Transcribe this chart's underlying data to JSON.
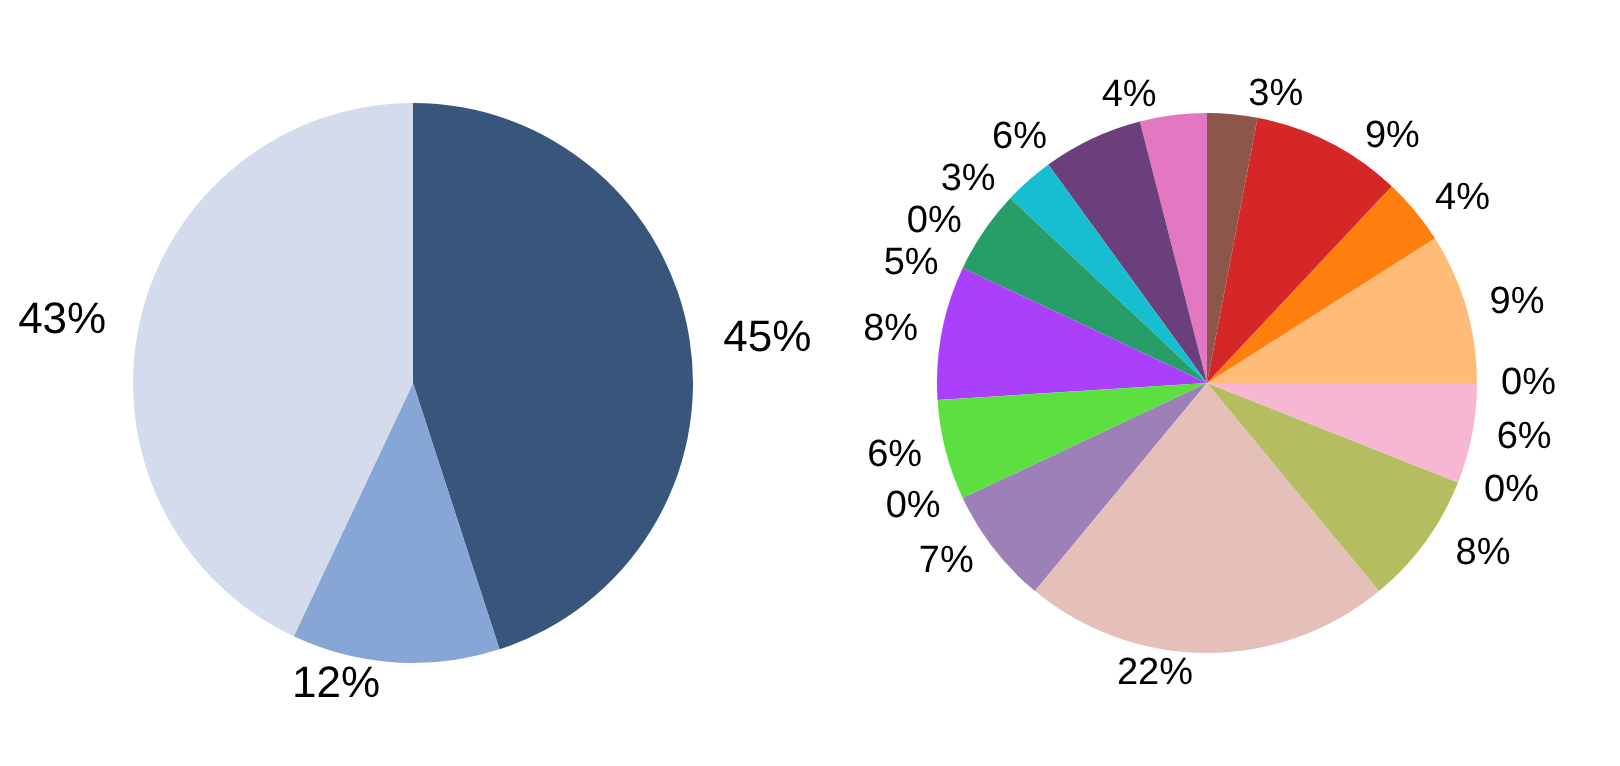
{
  "chart_data": [
    {
      "type": "pie",
      "categories": [
        null,
        null,
        null
      ],
      "values": [
        45,
        12,
        43
      ],
      "colors": [
        "#38557c",
        "#87a6d5",
        "#d4dbec"
      ],
      "value_labels": [
        "45%",
        "12%",
        "43%"
      ]
    },
    {
      "type": "pie",
      "categories": [
        null,
        null,
        null,
        null,
        null,
        null,
        null,
        null,
        null,
        null,
        null,
        null,
        null,
        null,
        null,
        null,
        null,
        null
      ],
      "values": [
        0,
        9,
        4,
        9,
        3,
        4,
        6,
        3,
        0,
        5,
        8,
        6,
        0,
        7,
        22,
        8,
        0,
        6
      ],
      "colors": [
        "#dbdb8d",
        "#ffbb78",
        "#ff7f0e",
        "#d62728",
        "#8c564b",
        "#e377c2",
        "#6b3e7c",
        "#17becf",
        "#aec7e8",
        "#279e68",
        "#aa40fc",
        "#5ce040",
        "#ff9896",
        "#9e80b8",
        "#e5c0b8",
        "#b5bd61",
        "#1f77b4",
        "#f7b6d2"
      ],
      "value_labels": [
        "0%",
        "9%",
        "4%",
        "9%",
        "3%",
        "4%",
        "6%",
        "3%",
        "0%",
        "5%",
        "8%",
        "6%",
        "0%",
        "7%",
        "22%",
        "8%",
        "0%",
        "6%"
      ]
    }
  ]
}
